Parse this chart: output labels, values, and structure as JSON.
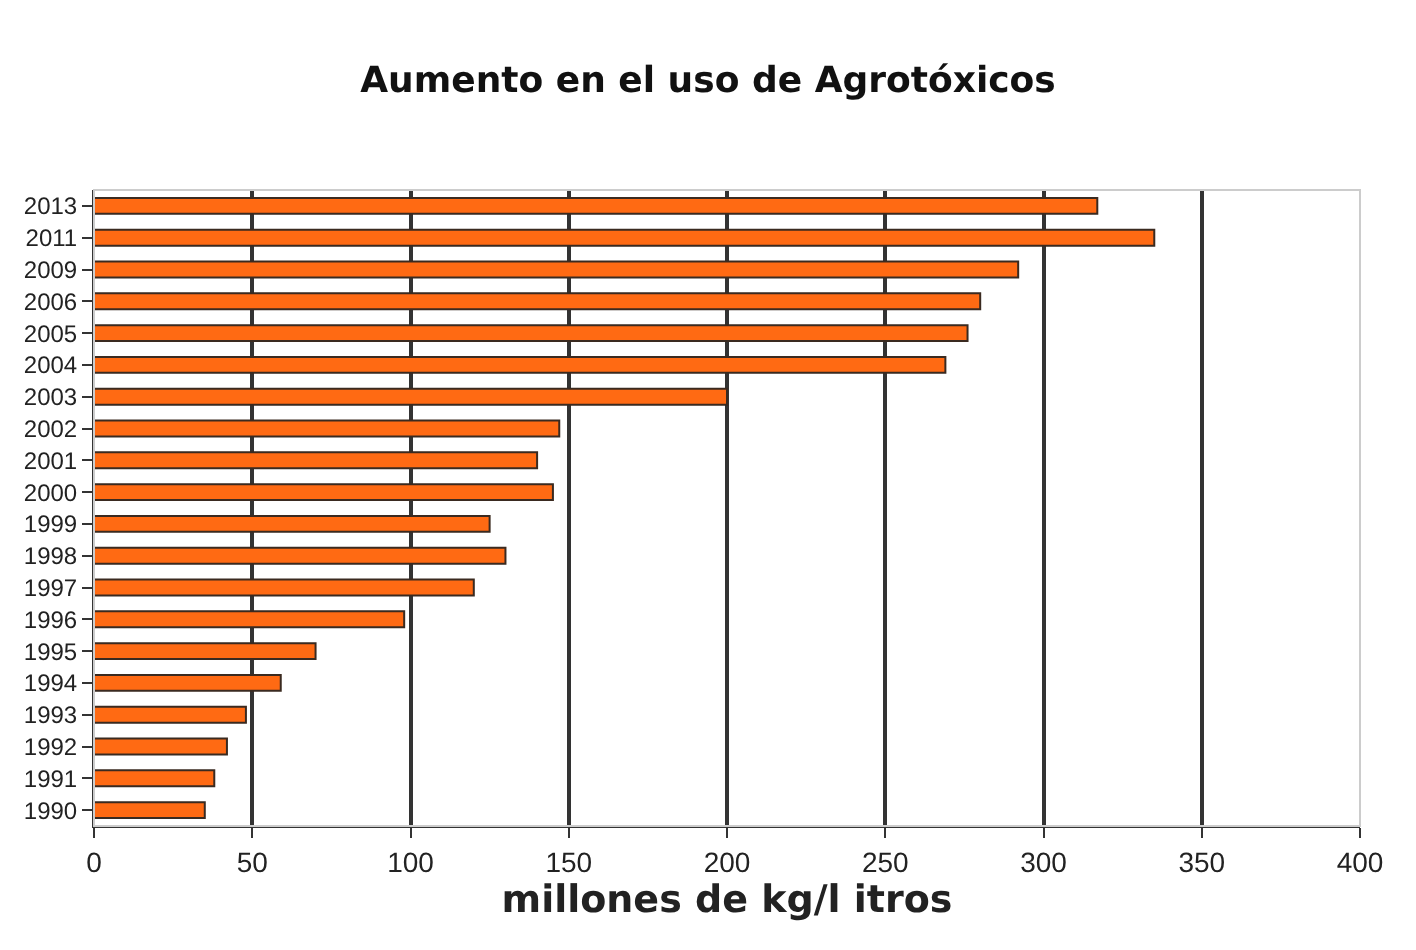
{
  "chart_data": {
    "type": "bar",
    "orientation": "horizontal",
    "title": "Aumento en el uso de Agrotóxicos",
    "xlabel": "millones de kg/l itros",
    "categories": [
      "2013",
      "2011",
      "2009",
      "2006",
      "2005",
      "2004",
      "2003",
      "2002",
      "2001",
      "2000",
      "1999",
      "1998",
      "1997",
      "1996",
      "1995",
      "1994",
      "1993",
      "1992",
      "1991",
      "1990"
    ],
    "values": [
      317,
      335,
      292,
      280,
      276,
      269,
      200,
      147,
      140,
      145,
      125,
      130,
      120,
      98,
      70,
      59,
      48,
      42,
      38,
      35
    ],
    "color": "#ff6a13",
    "xlim": [
      0,
      400
    ],
    "xticks": [
      0,
      50,
      100,
      150,
      200,
      250,
      300,
      350,
      400
    ],
    "grid": "x",
    "legend": false
  }
}
